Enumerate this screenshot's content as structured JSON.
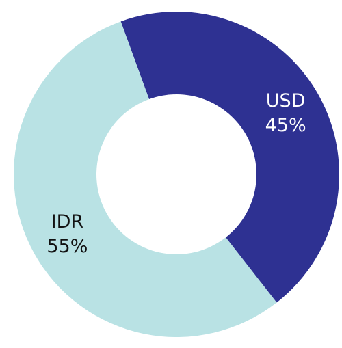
{
  "chart_data": {
    "type": "donut",
    "categories": [
      "USD",
      "IDR"
    ],
    "values": [
      45,
      55
    ],
    "value_labels": [
      "45%",
      "55%"
    ],
    "colors": [
      "#2e3192",
      "#b9e2e4"
    ],
    "label_colors": [
      "#ffffff",
      "#111111"
    ]
  }
}
